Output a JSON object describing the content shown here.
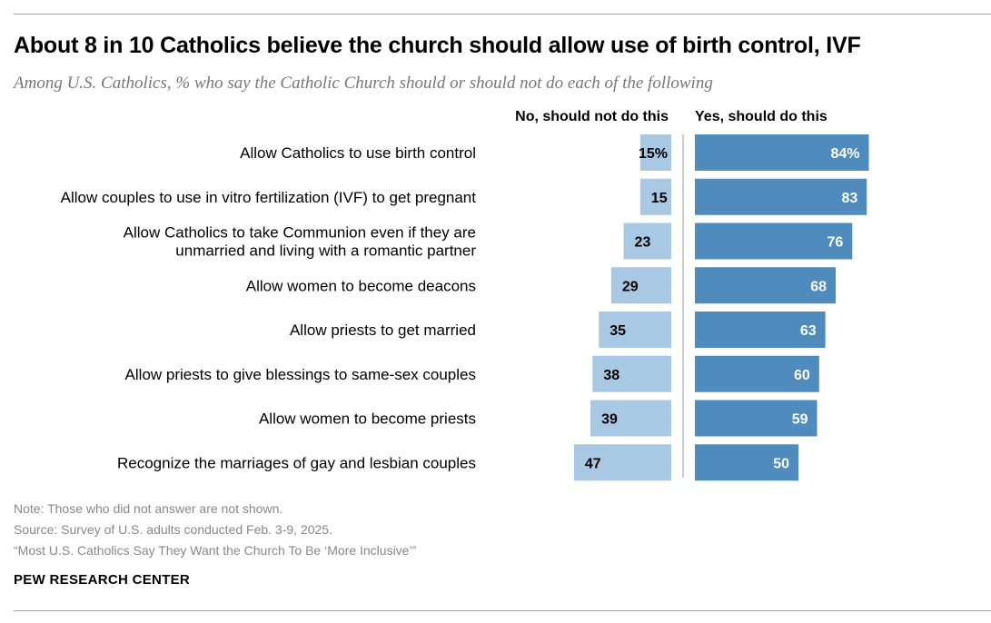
{
  "header": {
    "title": "About 8 in 10 Catholics believe the church should allow use of birth control, IVF",
    "subtitle": "Among U.S. Catholics, % who say the Catholic Church should or should not do each of the following"
  },
  "columns": {
    "no_label": "No, should not do this",
    "yes_label": "Yes, should do this"
  },
  "colors": {
    "no_bar": "#a8c8e4",
    "yes_bar": "#4f8bbd",
    "divider": "#9a9a9a"
  },
  "chart_data": {
    "type": "bar",
    "orientation": "horizontal-diverging",
    "categories": [
      "Allow Catholics to use birth control",
      "Allow couples to use in vitro fertilization (IVF) to get pregnant",
      "Allow Catholics to take Communion even if they are unmarried and living with a romantic partner",
      "Allow women to become deacons",
      "Allow priests to get married",
      "Allow priests to give blessings to same-sex couples",
      "Allow women to become priests",
      "Recognize the marriages of gay and lesbian couples"
    ],
    "category_lines": [
      [
        "Allow Catholics to use birth control"
      ],
      [
        "Allow couples to use in vitro fertilization (IVF) to get pregnant"
      ],
      [
        "Allow Catholics to take Communion even if they are",
        "unmarried and living with a romantic partner"
      ],
      [
        "Allow women to become deacons"
      ],
      [
        "Allow priests to get married"
      ],
      [
        "Allow priests to give blessings to same-sex couples"
      ],
      [
        "Allow women to become priests"
      ],
      [
        "Recognize the marriages of gay and lesbian couples"
      ]
    ],
    "series": [
      {
        "name": "No, should not do this",
        "values": [
          15,
          15,
          23,
          29,
          35,
          38,
          39,
          47
        ],
        "labels": [
          "15%",
          "15",
          "23",
          "29",
          "35",
          "38",
          "39",
          "47"
        ]
      },
      {
        "name": "Yes, should do this",
        "values": [
          84,
          83,
          76,
          68,
          63,
          60,
          59,
          50
        ],
        "labels": [
          "84%",
          "83",
          "76",
          "68",
          "63",
          "60",
          "59",
          "50"
        ]
      }
    ],
    "unit": "%"
  },
  "footer": {
    "note": "Note: Those who did not answer are not shown.",
    "source": "Source: Survey of U.S. adults conducted Feb. 3-9, 2025.",
    "report": "“Most U.S. Catholics Say They Want the Church To Be ‘More Inclusive’”",
    "org": "PEW RESEARCH CENTER"
  }
}
